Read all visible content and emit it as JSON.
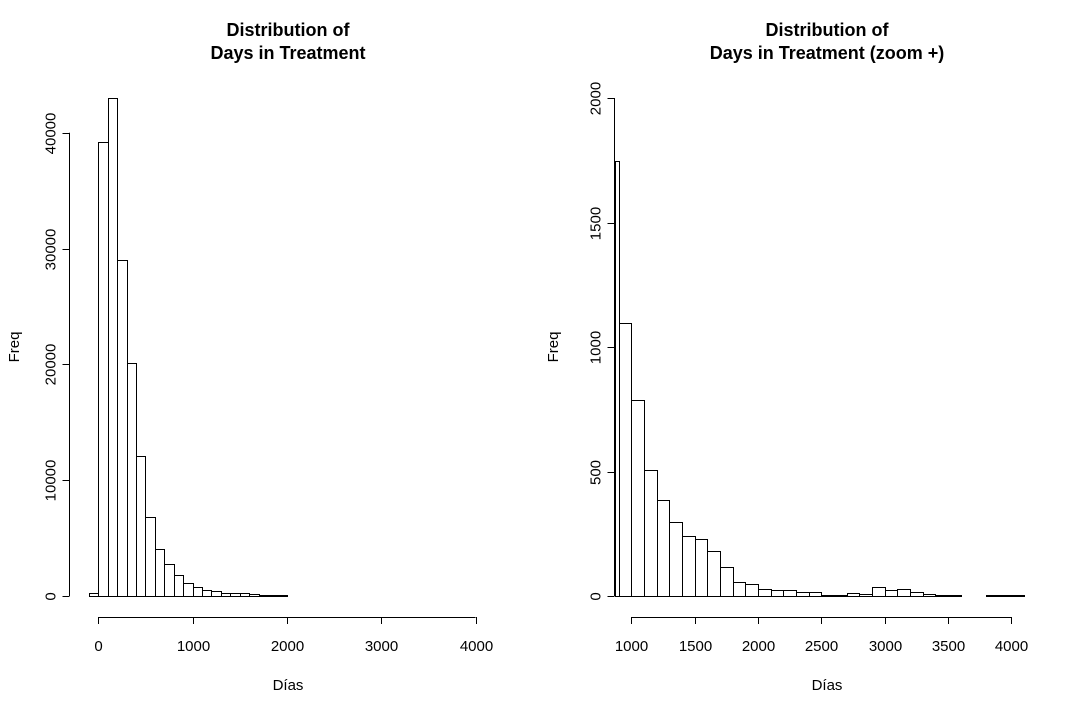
{
  "chart_data": [
    {
      "type": "bar",
      "title_line1": "Distribution of",
      "title_line2": "Days in Treatment",
      "xlabel": "Días",
      "ylabel": "Freq",
      "bin_width": 100,
      "xlim": [
        -300,
        4100
      ],
      "ylim": [
        0,
        43000
      ],
      "xticks": [
        0,
        1000,
        2000,
        3000,
        4000
      ],
      "yticks": [
        0,
        10000,
        20000,
        30000,
        40000
      ],
      "bins": [
        {
          "start": -100,
          "end": 0,
          "value": 300
        },
        {
          "start": 0,
          "end": 100,
          "value": 39200
        },
        {
          "start": 100,
          "end": 200,
          "value": 43000
        },
        {
          "start": 200,
          "end": 300,
          "value": 29000
        },
        {
          "start": 300,
          "end": 400,
          "value": 20100
        },
        {
          "start": 400,
          "end": 500,
          "value": 12100
        },
        {
          "start": 500,
          "end": 600,
          "value": 6800
        },
        {
          "start": 600,
          "end": 700,
          "value": 4100
        },
        {
          "start": 700,
          "end": 800,
          "value": 2800
        },
        {
          "start": 800,
          "end": 900,
          "value": 1800
        },
        {
          "start": 900,
          "end": 1000,
          "value": 1100
        },
        {
          "start": 1000,
          "end": 1100,
          "value": 780
        },
        {
          "start": 1100,
          "end": 1200,
          "value": 510
        },
        {
          "start": 1200,
          "end": 1300,
          "value": 390
        },
        {
          "start": 1300,
          "end": 1400,
          "value": 300
        },
        {
          "start": 1400,
          "end": 1500,
          "value": 240
        },
        {
          "start": 1500,
          "end": 1600,
          "value": 230
        },
        {
          "start": 1600,
          "end": 1700,
          "value": 180
        },
        {
          "start": 1700,
          "end": 1800,
          "value": 120
        },
        {
          "start": 1800,
          "end": 1900,
          "value": 60
        },
        {
          "start": 1900,
          "end": 2000,
          "value": 50
        },
        {
          "start": 2000,
          "end": 2100,
          "value": 35
        },
        {
          "start": 2100,
          "end": 2200,
          "value": 30
        },
        {
          "start": 2200,
          "end": 2300,
          "value": 28
        },
        {
          "start": 2300,
          "end": 2400,
          "value": 20
        },
        {
          "start": 2900,
          "end": 3000,
          "value": 40
        },
        {
          "start": 3000,
          "end": 3100,
          "value": 30
        },
        {
          "start": 3100,
          "end": 3200,
          "value": 28
        }
      ]
    },
    {
      "type": "bar",
      "title_line1": "Distribution of",
      "title_line2": "Days in Treatment (zoom +)",
      "xlabel": "Días",
      "ylabel": "Freq",
      "bin_width": 100,
      "xlim": [
        870,
        4100
      ],
      "ylim": [
        0,
        2000
      ],
      "xticks": [
        1000,
        1500,
        2000,
        2500,
        3000,
        3500,
        4000
      ],
      "yticks": [
        0,
        500,
        1000,
        1500,
        2000
      ],
      "bins": [
        {
          "start": 870,
          "end": 900,
          "value": 1745
        },
        {
          "start": 900,
          "end": 1000,
          "value": 1097
        },
        {
          "start": 1000,
          "end": 1100,
          "value": 787
        },
        {
          "start": 1100,
          "end": 1200,
          "value": 507
        },
        {
          "start": 1200,
          "end": 1300,
          "value": 387
        },
        {
          "start": 1300,
          "end": 1400,
          "value": 297
        },
        {
          "start": 1400,
          "end": 1500,
          "value": 240
        },
        {
          "start": 1500,
          "end": 1600,
          "value": 230
        },
        {
          "start": 1600,
          "end": 1700,
          "value": 180
        },
        {
          "start": 1700,
          "end": 1800,
          "value": 118
        },
        {
          "start": 1800,
          "end": 1900,
          "value": 58
        },
        {
          "start": 1900,
          "end": 2000,
          "value": 50
        },
        {
          "start": 2000,
          "end": 2100,
          "value": 30
        },
        {
          "start": 2100,
          "end": 2200,
          "value": 25
        },
        {
          "start": 2200,
          "end": 2300,
          "value": 25
        },
        {
          "start": 2300,
          "end": 2400,
          "value": 18
        },
        {
          "start": 2400,
          "end": 2500,
          "value": 18
        },
        {
          "start": 2500,
          "end": 2600,
          "value": 6
        },
        {
          "start": 2600,
          "end": 2700,
          "value": 6
        },
        {
          "start": 2700,
          "end": 2800,
          "value": 12
        },
        {
          "start": 2800,
          "end": 2900,
          "value": 8
        },
        {
          "start": 2900,
          "end": 3000,
          "value": 37
        },
        {
          "start": 3000,
          "end": 3100,
          "value": 25
        },
        {
          "start": 3100,
          "end": 3200,
          "value": 27
        },
        {
          "start": 3200,
          "end": 3300,
          "value": 16
        },
        {
          "start": 3300,
          "end": 3400,
          "value": 10
        },
        {
          "start": 3400,
          "end": 3500,
          "value": 5
        },
        {
          "start": 3500,
          "end": 3600,
          "value": 5
        },
        {
          "start": 3800,
          "end": 3900,
          "value": 4
        },
        {
          "start": 3900,
          "end": 4000,
          "value": 4
        },
        {
          "start": 4000,
          "end": 4100,
          "value": 4
        }
      ]
    }
  ]
}
